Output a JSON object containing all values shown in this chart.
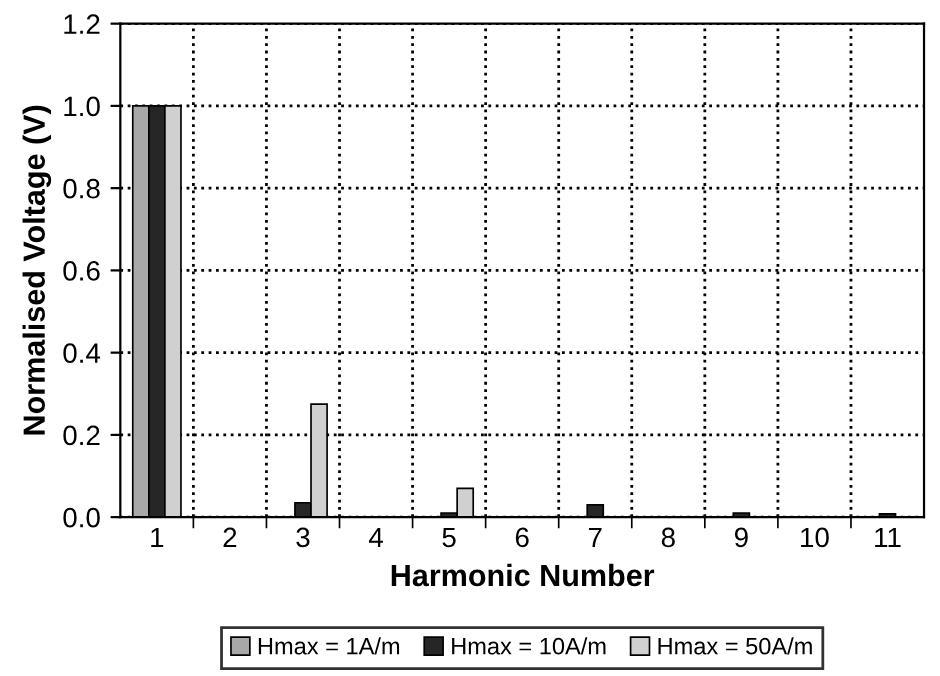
{
  "chart_data": {
    "type": "bar",
    "xlabel": "Harmonic Number",
    "ylabel": "Normalised Voltage (V)",
    "categories": [
      "1",
      "2",
      "3",
      "4",
      "5",
      "6",
      "7",
      "8",
      "9",
      "10",
      "11"
    ],
    "series": [
      {
        "name": "Hmax = 1A/m",
        "color": "#a8a8a8",
        "values": [
          1.0,
          null,
          null,
          null,
          null,
          null,
          null,
          null,
          null,
          null,
          null
        ]
      },
      {
        "name": "Hmax = 10A/m",
        "color": "#262626",
        "values": [
          1.0,
          null,
          0.035,
          null,
          0.01,
          null,
          0.03,
          null,
          0.01,
          null,
          0.008
        ]
      },
      {
        "name": "Hmax = 50A/m",
        "color": "#d0d0d0",
        "values": [
          1.0,
          null,
          0.275,
          null,
          0.07,
          null,
          null,
          null,
          null,
          null,
          null
        ]
      }
    ],
    "ylim": [
      0,
      1.2
    ],
    "yticks": [
      {
        "value": 0,
        "label": "0.0"
      },
      {
        "value": 0.2,
        "label": "0.2"
      },
      {
        "value": 0.4,
        "label": "0.4"
      },
      {
        "value": 0.6,
        "label": "0.6"
      },
      {
        "value": 0.8,
        "label": "0.8"
      },
      {
        "value": 1.0,
        "label": "1.0"
      },
      {
        "value": 1.2,
        "label": "1.2"
      }
    ],
    "grid": true,
    "line_style": "dotted",
    "legend": "bottom"
  }
}
